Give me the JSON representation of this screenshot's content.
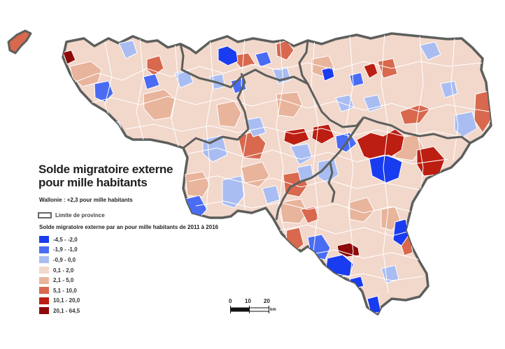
{
  "title_line1": "Solde migratoire externe",
  "title_line2": "pour mille habitants",
  "subtitle": "Wallonie : +2,3 pour mille habitants",
  "province_label": "Limite de province",
  "legend_title": "Solde migratoire externe par an pour mille habitants de 2011 à 2016",
  "legend": [
    {
      "label": "-4,5 - -2,0",
      "color": "#1a3cf0"
    },
    {
      "label": "-1,9 - -1,0",
      "color": "#4a6cf4"
    },
    {
      "label": "-0,9 - 0,0",
      "color": "#a9bdf2"
    },
    {
      "label": "0,1 - 2,0",
      "color": "#f2d7cb"
    },
    {
      "label": "2,1 - 5,0",
      "color": "#e8b49c"
    },
    {
      "label": "5,1 - 10,0",
      "color": "#d8684e"
    },
    {
      "label": "10,1 - 20,0",
      "color": "#bd1e12"
    },
    {
      "label": "20,1 - 64,5",
      "color": "#8e0a08"
    }
  ],
  "scale": {
    "ticks": [
      "0",
      "10",
      "20"
    ],
    "unit": "km"
  }
}
